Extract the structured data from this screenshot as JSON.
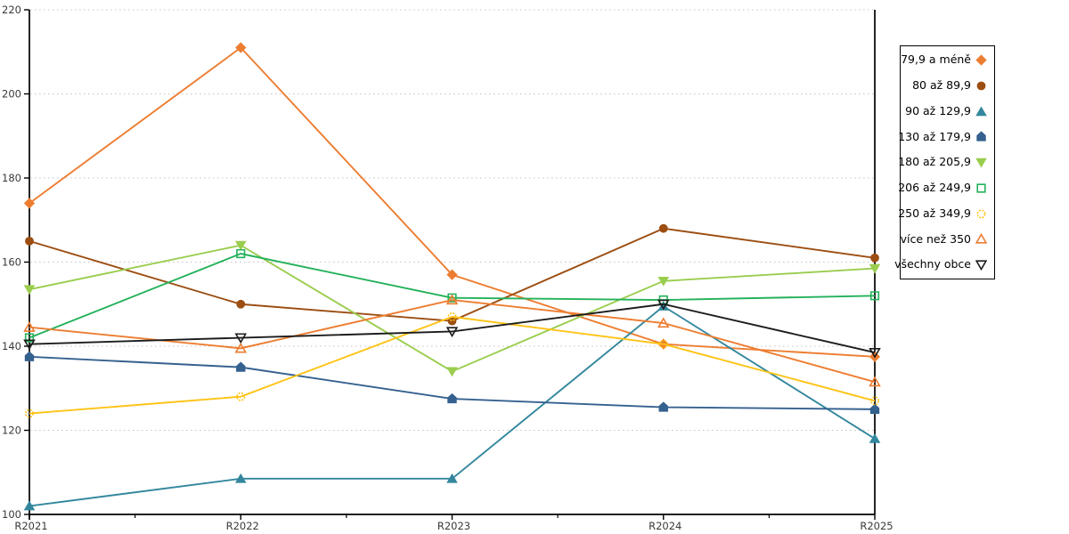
{
  "chart_data": {
    "type": "line",
    "title": "",
    "xlabel": "",
    "ylabel": "",
    "categories": [
      "R2021",
      "R2022",
      "R2023",
      "R2024",
      "R2025"
    ],
    "series": [
      {
        "name": "79,9 a méně",
        "values": [
          174,
          211,
          157,
          140.5,
          137.5
        ],
        "color": "#ED7D31",
        "marker": "diamond",
        "filled": true,
        "dashed_marker": false
      },
      {
        "name": "80 až 89,9",
        "values": [
          165,
          150,
          146,
          168,
          161
        ],
        "color": "#9C4E12",
        "marker": "circle",
        "filled": true,
        "dashed_marker": false
      },
      {
        "name": "90 až 129,9",
        "values": [
          102,
          108.5,
          108.5,
          149.5,
          118
        ],
        "color": "#33879D",
        "marker": "triangle-up",
        "filled": true,
        "dashed_marker": false
      },
      {
        "name": "130 až 179,9",
        "values": [
          137.5,
          135,
          127.5,
          125.5,
          125
        ],
        "color": "#35618F",
        "marker": "pentagon",
        "filled": true,
        "dashed_marker": false
      },
      {
        "name": "180 až 205,9",
        "values": [
          153.5,
          164,
          134,
          155.5,
          158.5
        ],
        "color": "#9ACD4E",
        "marker": "triangle-down",
        "filled": true,
        "dashed_marker": false
      },
      {
        "name": "206 až 249,9",
        "values": [
          142,
          162,
          151.5,
          151,
          152
        ],
        "color": "#23B15A",
        "marker": "square",
        "filled": false,
        "dashed_marker": false
      },
      {
        "name": "250 až 349,9",
        "values": [
          124,
          128,
          147,
          140.5,
          127
        ],
        "color": "#FFC316",
        "marker": "circle",
        "filled": false,
        "dashed_marker": true
      },
      {
        "name": "více než 350",
        "values": [
          144.5,
          139.5,
          151,
          145.5,
          131.5
        ],
        "color": "#ED7D31",
        "marker": "triangle-up",
        "filled": false,
        "dashed_marker": false
      },
      {
        "name": "všechny obce",
        "values": [
          140.5,
          142,
          143.5,
          150,
          138.5
        ],
        "color": "#1C1C1C",
        "marker": "triangle-down",
        "filled": false,
        "dashed_marker": false
      }
    ],
    "ylim": [
      100,
      220
    ],
    "ytick_step": 20,
    "y_tick_labels": [
      "100",
      "120",
      "140",
      "160",
      "180",
      "200",
      "220"
    ],
    "grid": "horizontal-dotted",
    "legend_position": "right"
  },
  "colors": {
    "background": "#FFFFFF",
    "gridline": "#C7C7C7",
    "axis": "#000000",
    "tick_label": "#3A3A3A",
    "legend_border": "#000000"
  }
}
